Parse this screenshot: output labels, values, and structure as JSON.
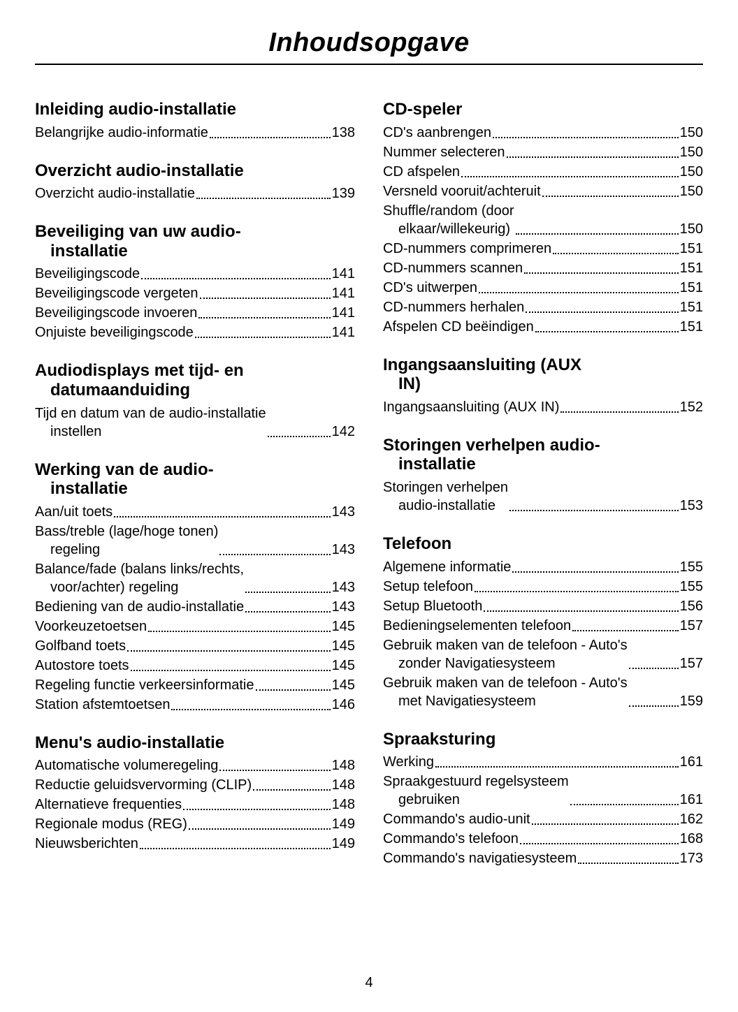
{
  "title": "Inhoudsopgave",
  "page_number": "4",
  "typography": {
    "title_fontsize": 38,
    "heading_fontsize": 24,
    "entry_fontsize": 20,
    "font_family": "Arial",
    "title_style": "bold italic"
  },
  "colors": {
    "text": "#000000",
    "background": "#ffffff",
    "rule": "#000000",
    "dots": "#000000"
  },
  "left_column": [
    {
      "heading": "Inleiding audio-installatie",
      "entries": [
        {
          "label": "Belangrijke audio-informatie",
          "page": "138"
        }
      ]
    },
    {
      "heading": "Overzicht audio-installatie",
      "entries": [
        {
          "label": "Overzicht audio-installatie",
          "page": "139"
        }
      ]
    },
    {
      "heading": "Beveiliging van uw audio-",
      "heading_cont": "installatie",
      "entries": [
        {
          "label": "Beveiligingscode",
          "page": "141"
        },
        {
          "label": "Beveiligingscode vergeten",
          "page": "141"
        },
        {
          "label": "Beveiligingscode invoeren",
          "page": "141"
        },
        {
          "label": "Onjuiste beveiligingscode",
          "page": "141"
        }
      ]
    },
    {
      "heading": "Audiodisplays met tijd- en",
      "heading_cont": "datumaanduiding",
      "entries": [
        {
          "label": "Tijd en datum van de audio-installatie",
          "label_cont": "instellen",
          "page": "142"
        }
      ]
    },
    {
      "heading": "Werking van de audio-",
      "heading_cont": "installatie",
      "entries": [
        {
          "label": "Aan/uit toets",
          "page": "143"
        },
        {
          "label": "Bass/treble (lage/hoge tonen)",
          "label_cont": "regeling",
          "page": "143"
        },
        {
          "label": "Balance/fade (balans links/rechts,",
          "label_cont": "voor/achter) regeling",
          "page": "143"
        },
        {
          "label": "Bediening van de audio-installatie",
          "page": "143"
        },
        {
          "label": "Voorkeuzetoetsen",
          "page": "145"
        },
        {
          "label": "Golfband toets",
          "page": "145"
        },
        {
          "label": "Autostore toets",
          "page": "145"
        },
        {
          "label": "Regeling functie verkeersinformatie",
          "page": "145"
        },
        {
          "label": "Station afstemtoetsen",
          "page": "146"
        }
      ]
    },
    {
      "heading": "Menu's audio-installatie",
      "entries": [
        {
          "label": "Automatische volumeregeling",
          "page": "148"
        },
        {
          "label": "Reductie geluidsvervorming (CLIP)",
          "page": "148"
        },
        {
          "label": "Alternatieve frequenties",
          "page": "148"
        },
        {
          "label": "Regionale modus (REG)",
          "page": "149"
        },
        {
          "label": "Nieuwsberichten",
          "page": "149"
        }
      ]
    }
  ],
  "right_column": [
    {
      "heading": "CD-speler",
      "entries": [
        {
          "label": "CD's aanbrengen",
          "page": "150"
        },
        {
          "label": "Nummer selecteren",
          "page": "150"
        },
        {
          "label": "CD afspelen",
          "page": "150"
        },
        {
          "label": "Versneld vooruit/achteruit",
          "page": "150"
        },
        {
          "label": "Shuffle/random (door",
          "label_cont": "elkaar/willekeurig)",
          "page": "150"
        },
        {
          "label": "CD-nummers comprimeren",
          "page": "151"
        },
        {
          "label": "CD-nummers scannen",
          "page": "151"
        },
        {
          "label": "CD's uitwerpen",
          "page": "151"
        },
        {
          "label": "CD-nummers herhalen",
          "page": "151"
        },
        {
          "label": "Afspelen CD beëindigen",
          "page": "151"
        }
      ]
    },
    {
      "heading": "Ingangsaansluiting (AUX",
      "heading_cont": "IN)",
      "entries": [
        {
          "label": "Ingangsaansluiting (AUX IN)",
          "page": "152"
        }
      ]
    },
    {
      "heading": "Storingen verhelpen audio-",
      "heading_cont": "installatie",
      "entries": [
        {
          "label": "Storingen verhelpen",
          "label_cont": "audio-installatie",
          "page": "153"
        }
      ]
    },
    {
      "heading": "Telefoon",
      "entries": [
        {
          "label": "Algemene informatie",
          "page": "155"
        },
        {
          "label": "Setup telefoon",
          "page": "155"
        },
        {
          "label": "Setup Bluetooth",
          "page": "156"
        },
        {
          "label": "Bedieningselementen telefoon",
          "page": "157"
        },
        {
          "label": "Gebruik maken van de telefoon - Auto's",
          "label_cont": "zonder Navigatiesysteem ",
          "page": "157"
        },
        {
          "label": "Gebruik maken van de telefoon - Auto's",
          "label_cont": "met Navigatiesysteem ",
          "page": "159"
        }
      ]
    },
    {
      "heading": "Spraaksturing",
      "entries": [
        {
          "label": "Werking",
          "page": "161"
        },
        {
          "label": "Spraakgestuurd regelsysteem",
          "label_cont": "gebruiken",
          "page": "161"
        },
        {
          "label": "Commando's audio-unit ",
          "page": "162"
        },
        {
          "label": "Commando's telefoon",
          "page": "168"
        },
        {
          "label": "Commando's navigatiesysteem",
          "page": "173"
        }
      ]
    }
  ]
}
